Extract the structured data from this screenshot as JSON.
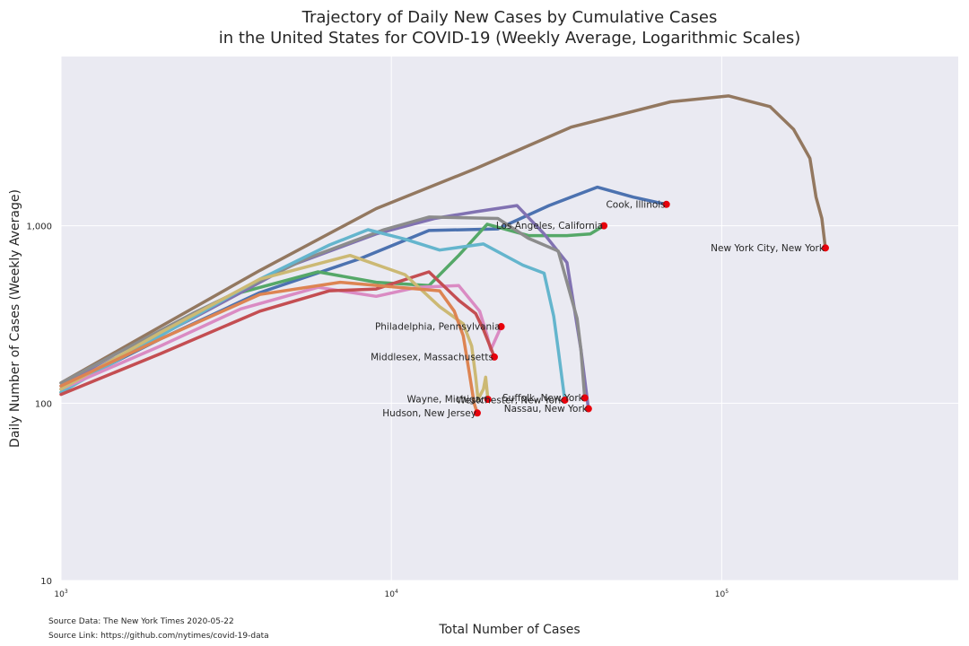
{
  "chart_data": {
    "type": "line",
    "title_lines": [
      "Trajectory of Daily New Cases by Cumulative Cases",
      "in the United States for COVID-19 (Weekly Average, Logarithmic Scales)"
    ],
    "xlabel": "Total Number of Cases",
    "ylabel": "Daily Number of Cases (Weekly Average)",
    "x_scale": "log",
    "y_scale": "log",
    "xlim": [
      1000,
      520000
    ],
    "ylim": [
      10,
      9000
    ],
    "x_ticks": [
      {
        "value": 1000,
        "base": "10",
        "exp": "3"
      },
      {
        "value": 10000,
        "base": "10",
        "exp": "4"
      },
      {
        "value": 100000,
        "base": "10",
        "exp": "5"
      }
    ],
    "y_ticks": [
      {
        "value": 10,
        "label": "10"
      },
      {
        "value": 100,
        "label": "100"
      },
      {
        "value": 1000,
        "label": "1,000"
      }
    ],
    "grid": true,
    "colors": {
      "background": "#eaeaf2",
      "grid": "#ffffff",
      "marker": "#e8000b"
    },
    "series": [
      {
        "name": "New York City, New York",
        "color": "#937860",
        "points": [
          [
            1000,
            130
          ],
          [
            2000,
            270
          ],
          [
            4000,
            560
          ],
          [
            9000,
            1250
          ],
          [
            18000,
            2100
          ],
          [
            35000,
            3600
          ],
          [
            70000,
            5000
          ],
          [
            105000,
            5400
          ],
          [
            140000,
            4700
          ],
          [
            165000,
            3500
          ],
          [
            185000,
            2400
          ],
          [
            193000,
            1450
          ],
          [
            201000,
            1100
          ],
          [
            206000,
            750
          ]
        ],
        "label_side": "left"
      },
      {
        "name": "Cook, Illinois",
        "color": "#4c72b0",
        "points": [
          [
            1000,
            120
          ],
          [
            2000,
            230
          ],
          [
            4000,
            420
          ],
          [
            8000,
            650
          ],
          [
            13000,
            940
          ],
          [
            21000,
            960
          ],
          [
            30000,
            1300
          ],
          [
            42000,
            1650
          ],
          [
            54000,
            1450
          ],
          [
            68000,
            1320
          ]
        ],
        "label_side": "left"
      },
      {
        "name": "Los Angeles, California",
        "color": "#55a868",
        "points": [
          [
            1000,
            115
          ],
          [
            2000,
            250
          ],
          [
            3500,
            420
          ],
          [
            6000,
            550
          ],
          [
            9000,
            480
          ],
          [
            13000,
            460
          ],
          [
            16000,
            680
          ],
          [
            19500,
            1020
          ],
          [
            26000,
            880
          ],
          [
            34000,
            880
          ],
          [
            40000,
            900
          ],
          [
            44000,
            1000
          ]
        ],
        "label_side": "left"
      },
      {
        "name": "Nassau, New York",
        "color": "#8172b2",
        "points": [
          [
            1000,
            125
          ],
          [
            2500,
            300
          ],
          [
            5000,
            600
          ],
          [
            9000,
            900
          ],
          [
            13500,
            1100
          ],
          [
            18000,
            1200
          ],
          [
            24000,
            1300
          ],
          [
            29000,
            900
          ],
          [
            34000,
            620
          ],
          [
            37500,
            200
          ],
          [
            39500,
            93
          ]
        ],
        "label_side": "left"
      },
      {
        "name": "Suffolk, New York",
        "color": "#8c8c8c",
        "points": [
          [
            1000,
            130
          ],
          [
            2500,
            320
          ],
          [
            5500,
            650
          ],
          [
            9500,
            950
          ],
          [
            13000,
            1120
          ],
          [
            21000,
            1100
          ],
          [
            26000,
            850
          ],
          [
            32000,
            720
          ],
          [
            36500,
            300
          ],
          [
            37500,
            200
          ],
          [
            38500,
            107
          ]
        ],
        "label_side": "left"
      },
      {
        "name": "Westchester, New York",
        "color": "#64b5cd",
        "points": [
          [
            1000,
            115
          ],
          [
            2000,
            240
          ],
          [
            4000,
            500
          ],
          [
            6500,
            780
          ],
          [
            8500,
            950
          ],
          [
            11000,
            840
          ],
          [
            14000,
            730
          ],
          [
            19000,
            790
          ],
          [
            25000,
            600
          ],
          [
            29000,
            540
          ],
          [
            31000,
            310
          ],
          [
            32000,
            200
          ],
          [
            33500,
            104
          ]
        ],
        "label_side": "left"
      },
      {
        "name": "Philadelphia, Pennsylvania",
        "color": "#da8bc3",
        "points": [
          [
            1000,
            120
          ],
          [
            2000,
            210
          ],
          [
            3500,
            340
          ],
          [
            6000,
            450
          ],
          [
            9000,
            400
          ],
          [
            12000,
            450
          ],
          [
            16000,
            460
          ],
          [
            18500,
            330
          ],
          [
            19500,
            240
          ],
          [
            20000,
            200
          ],
          [
            21500,
            270
          ]
        ],
        "label_side": "left"
      },
      {
        "name": "Middlesex, Massachusetts",
        "color": "#c44e52",
        "points": [
          [
            1000,
            112
          ],
          [
            2000,
            190
          ],
          [
            4000,
            330
          ],
          [
            6500,
            430
          ],
          [
            9000,
            440
          ],
          [
            13000,
            550
          ],
          [
            16000,
            380
          ],
          [
            18000,
            320
          ],
          [
            19000,
            260
          ],
          [
            20500,
            182
          ]
        ],
        "label_side": "left"
      },
      {
        "name": "Wayne, Michigan",
        "color": "#ccb974",
        "points": [
          [
            1000,
            120
          ],
          [
            2000,
            250
          ],
          [
            4000,
            500
          ],
          [
            7500,
            680
          ],
          [
            11000,
            530
          ],
          [
            14000,
            350
          ],
          [
            16500,
            280
          ],
          [
            17500,
            210
          ],
          [
            18000,
            140
          ],
          [
            18300,
            105
          ],
          [
            19000,
            120
          ],
          [
            19300,
            140
          ],
          [
            19600,
            105
          ]
        ],
        "label_side": "left"
      },
      {
        "name": "Hudson, New Jersey",
        "color": "#dd8452",
        "points": [
          [
            1000,
            125
          ],
          [
            2000,
            230
          ],
          [
            4000,
            410
          ],
          [
            7000,
            480
          ],
          [
            10500,
            450
          ],
          [
            14000,
            430
          ],
          [
            15500,
            330
          ],
          [
            16500,
            240
          ],
          [
            17200,
            150
          ],
          [
            17800,
            100
          ],
          [
            18200,
            88
          ]
        ],
        "label_side": "left"
      }
    ],
    "source_data": "Source Data: The New York Times 2020-05-22",
    "source_link": "Source Link: https://github.com/nytimes/covid-19-data"
  }
}
